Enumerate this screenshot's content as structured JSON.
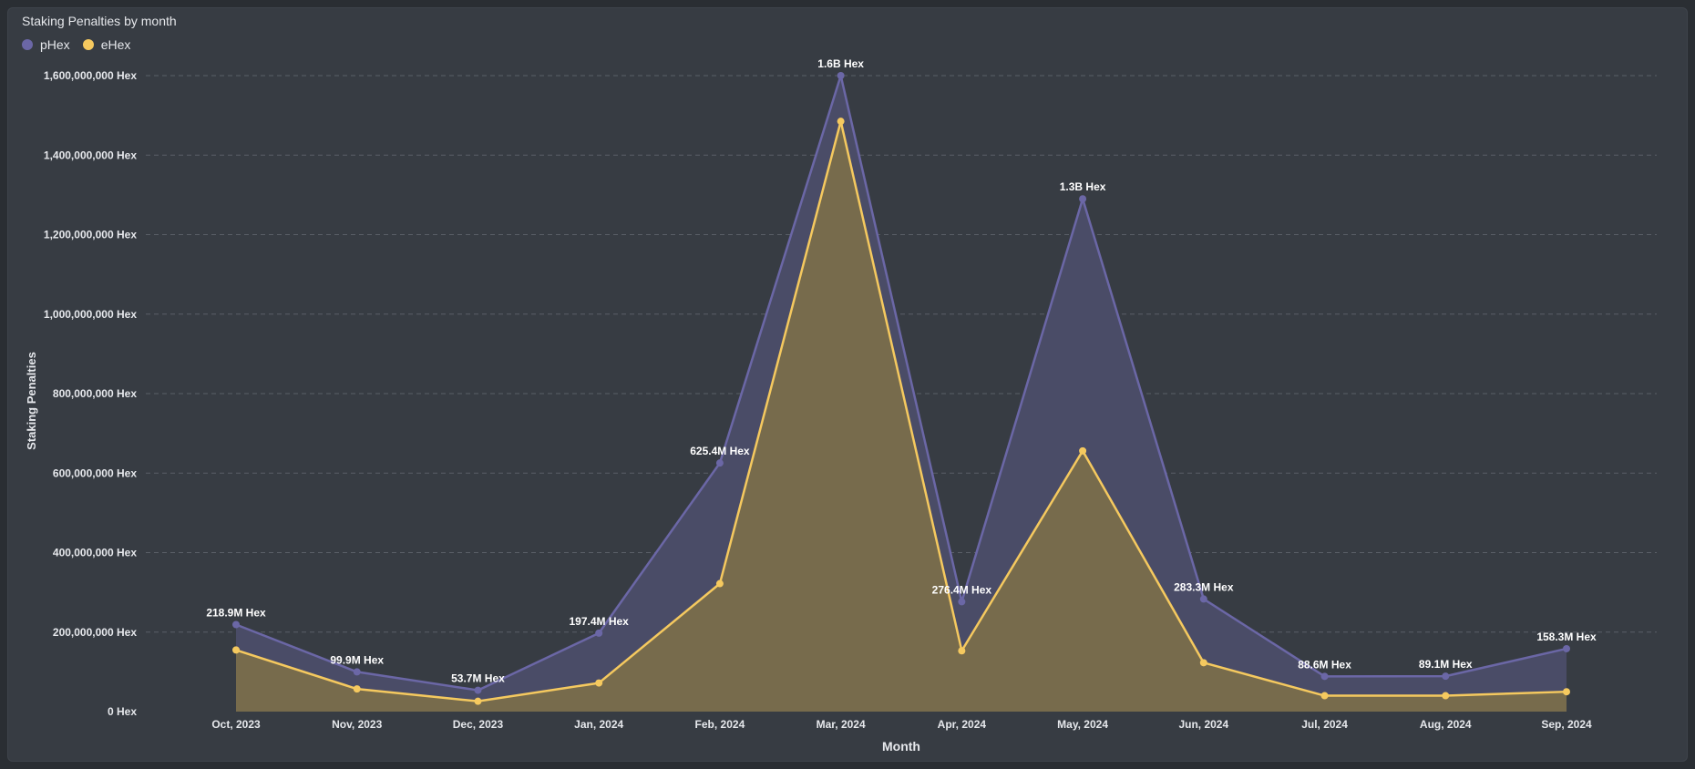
{
  "chart_data": {
    "type": "area",
    "title": "Staking Penalties by month",
    "xlabel": "Month",
    "ylabel": "Staking Penalties",
    "ylim": [
      0,
      1600000000
    ],
    "y_ticks": [
      {
        "value": 0,
        "label": "0 Hex"
      },
      {
        "value": 200000000,
        "label": "200,000,000 Hex"
      },
      {
        "value": 400000000,
        "label": "400,000,000 Hex"
      },
      {
        "value": 600000000,
        "label": "600,000,000 Hex"
      },
      {
        "value": 800000000,
        "label": "800,000,000 Hex"
      },
      {
        "value": 1000000000,
        "label": "1,000,000,000 Hex"
      },
      {
        "value": 1200000000,
        "label": "1,200,000,000 Hex"
      },
      {
        "value": 1400000000,
        "label": "1,400,000,000 Hex"
      },
      {
        "value": 1600000000,
        "label": "1,600,000,000 Hex"
      }
    ],
    "grid": true,
    "legend_position": "top-left",
    "categories": [
      "Oct, 2023",
      "Nov, 2023",
      "Dec, 2023",
      "Jan, 2024",
      "Feb, 2024",
      "Mar, 2024",
      "Apr, 2024",
      "May, 2024",
      "Jun, 2024",
      "Jul, 2024",
      "Aug, 2024",
      "Sep, 2024"
    ],
    "series": [
      {
        "name": "pHex",
        "color": "#6b67a6",
        "fill": "#4a4c67",
        "values": [
          218900000,
          99900000,
          53700000,
          197400000,
          625400000,
          1600000000,
          276400000,
          1290000000,
          283300000,
          88600000,
          89100000,
          158300000
        ],
        "labels": [
          "218.9M Hex",
          "99.9M Hex",
          "53.7M Hex",
          "197.4M Hex",
          "625.4M Hex",
          "1.6B Hex",
          "276.4M Hex",
          "1.3B Hex",
          "283.3M Hex",
          "88.6M Hex",
          "89.1M Hex",
          "158.3M Hex"
        ]
      },
      {
        "name": "eHex",
        "color": "#f5c95f",
        "fill": "#776b4c",
        "values": [
          155000000,
          57000000,
          26000000,
          72000000,
          322000000,
          1485000000,
          153000000,
          656000000,
          123000000,
          40000000,
          40000000,
          50000000
        ]
      }
    ]
  }
}
